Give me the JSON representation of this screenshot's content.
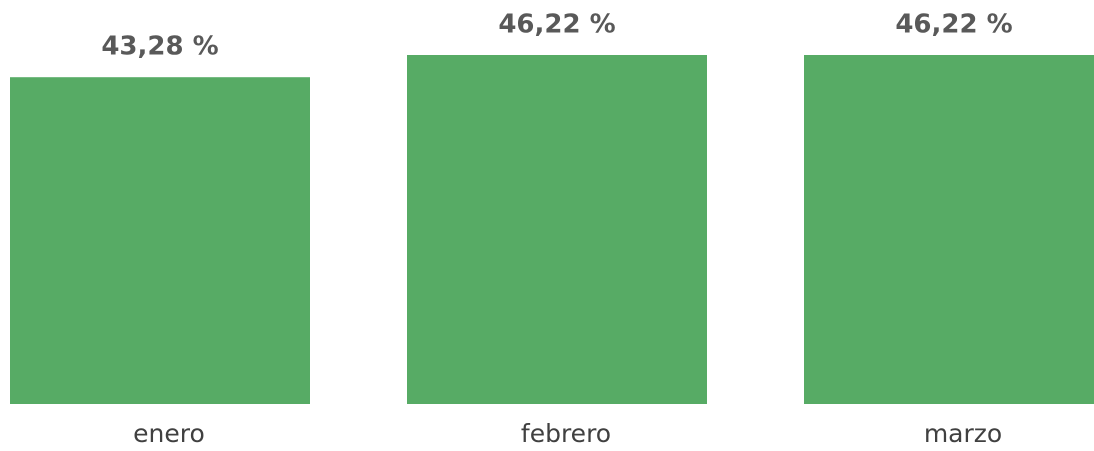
{
  "chart_data": {
    "type": "bar",
    "categories": [
      "enero",
      "febrero",
      "marzo"
    ],
    "values": [
      43.28,
      46.22,
      46.22
    ],
    "value_labels": [
      "43,28 %",
      "46,22 %",
      "46,22 %"
    ],
    "color": "#57ab65"
  }
}
